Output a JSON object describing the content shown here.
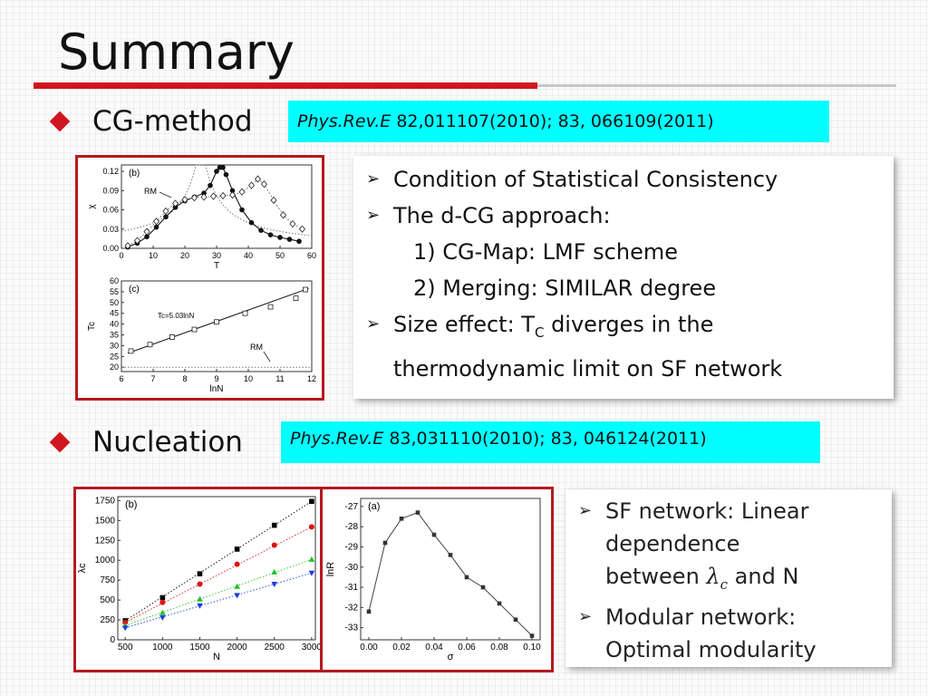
{
  "slide": {
    "title": "Summary",
    "colors": {
      "accent": "#d1151f",
      "ref_bg": "#00ffff",
      "panel_border": "#b5191f"
    }
  },
  "section1": {
    "heading": "CG-method",
    "ref_journal": "Phys.Rev.E",
    "ref_rest": "82,011107(2010); 83, 066109(2011)",
    "items": [
      {
        "type": "bullet",
        "text": "Condition of Statistical Consistency"
      },
      {
        "type": "bullet",
        "text": "The d-CG approach:"
      },
      {
        "type": "sub",
        "text": "1) CG-Map: LMF scheme"
      },
      {
        "type": "sub",
        "text": "2) Merging: SIMILAR degree"
      },
      {
        "type": "bullet",
        "pre": "Size effect: T",
        "sub": "C",
        "post": " diverges in the"
      },
      {
        "type": "cont",
        "text": "thermodynamic limit on SF network"
      }
    ]
  },
  "section2": {
    "heading": "Nucleation",
    "ref_journal": "Phys.Rev.E",
    "ref_rest": "83,031110(2010); 83, 046124(2011)",
    "items": [
      {
        "type": "bullet",
        "text": "SF network: Linear"
      },
      {
        "type": "cont",
        "text": "dependence"
      },
      {
        "type": "mathline",
        "pre": "between ",
        "sym": "λ",
        "symsub": "c",
        "post": " and N"
      },
      {
        "type": "bullet",
        "text": "Modular network:"
      },
      {
        "type": "cont",
        "text": "Optimal modularity"
      }
    ]
  },
  "chart_data": [
    {
      "type": "scatter",
      "panel_label": "(b)",
      "xlabel": "T",
      "ylabel": "χ",
      "xlim": [
        0,
        60
      ],
      "ylim": [
        0,
        0.13
      ],
      "xticks": [
        "0",
        "10",
        "20",
        "30",
        "40",
        "50",
        "60"
      ],
      "yticks": [
        "0.00",
        "0.03",
        "0.06",
        "0.09",
        "0.12"
      ],
      "annotation": "RM",
      "series": [
        {
          "marker": "filled-circle",
          "x": [
            2,
            5,
            8,
            11,
            14,
            17,
            20,
            23,
            26,
            28,
            30,
            31,
            32,
            33,
            35,
            38,
            41,
            44,
            47,
            50,
            53,
            56
          ],
          "y": [
            0.002,
            0.008,
            0.018,
            0.033,
            0.049,
            0.064,
            0.074,
            0.08,
            0.086,
            0.098,
            0.12,
            0.126,
            0.126,
            0.115,
            0.09,
            0.06,
            0.04,
            0.028,
            0.021,
            0.017,
            0.014,
            0.011
          ]
        },
        {
          "marker": "open-diamond",
          "x": [
            2,
            5,
            8,
            11,
            14,
            17,
            20,
            23,
            26,
            29,
            32,
            35,
            38,
            41,
            43,
            45,
            48,
            51,
            54,
            57
          ],
          "y": [
            0.004,
            0.012,
            0.026,
            0.042,
            0.058,
            0.07,
            0.076,
            0.079,
            0.08,
            0.081,
            0.082,
            0.083,
            0.088,
            0.098,
            0.108,
            0.1,
            0.075,
            0.052,
            0.038,
            0.03
          ]
        }
      ]
    },
    {
      "type": "scatter",
      "panel_label": "(c)",
      "xlabel": "lnN",
      "ylabel": "Tc",
      "xlim": [
        6,
        12
      ],
      "ylim": [
        18,
        60
      ],
      "xticks": [
        "6",
        "7",
        "8",
        "9",
        "10",
        "11",
        "12"
      ],
      "yticks": [
        "20",
        "25",
        "30",
        "35",
        "40",
        "45",
        "50",
        "55",
        "60"
      ],
      "fit_label": "Tc=5.03lnN",
      "annotation": "RM",
      "x": [
        6.3,
        6.9,
        7.6,
        8.3,
        9.0,
        9.9,
        10.7,
        11.5,
        11.8
      ],
      "y": [
        27.5,
        30.5,
        34,
        37.5,
        41,
        45,
        48,
        52,
        56
      ]
    },
    {
      "type": "scatter",
      "panel_label": "(b)",
      "xlabel": "N",
      "ylabel": "λc",
      "xlim": [
        400,
        3050
      ],
      "ylim": [
        0,
        1800
      ],
      "xticks": [
        "500",
        "1000",
        "1500",
        "2000",
        "2500",
        "3000"
      ],
      "yticks": [
        "0",
        "250",
        "500",
        "750",
        "1000",
        "1250",
        "1500",
        "1750"
      ],
      "x": [
        500,
        1000,
        1500,
        2000,
        2500,
        3000
      ],
      "series": [
        {
          "marker": "square",
          "color": "#000000",
          "values": [
            240,
            530,
            830,
            1140,
            1440,
            1740
          ]
        },
        {
          "marker": "circle",
          "color": "#e01010",
          "values": [
            220,
            470,
            700,
            950,
            1190,
            1420
          ]
        },
        {
          "marker": "triangle-up",
          "color": "#1fc41f",
          "values": [
            180,
            340,
            510,
            670,
            850,
            1010
          ]
        },
        {
          "marker": "triangle-down",
          "color": "#1a3ae0",
          "values": [
            150,
            280,
            430,
            560,
            700,
            840
          ]
        }
      ]
    },
    {
      "type": "line",
      "panel_label": "(a)",
      "xlabel": "σ",
      "ylabel": "lnR",
      "xlim": [
        -0.005,
        0.105
      ],
      "ylim": [
        -33.6,
        -26.6
      ],
      "xticks": [
        "0.00",
        "0.02",
        "0.04",
        "0.06",
        "0.08",
        "0.10"
      ],
      "yticks": [
        "-27",
        "-28",
        "-29",
        "-30",
        "-31",
        "-32",
        "-33"
      ],
      "x": [
        0.0,
        0.01,
        0.02,
        0.03,
        0.04,
        0.05,
        0.06,
        0.07,
        0.08,
        0.09,
        0.1
      ],
      "y": [
        -32.2,
        -28.8,
        -27.6,
        -27.3,
        -28.4,
        -29.4,
        -30.5,
        -31.0,
        -31.8,
        -32.6,
        -33.4
      ]
    }
  ]
}
